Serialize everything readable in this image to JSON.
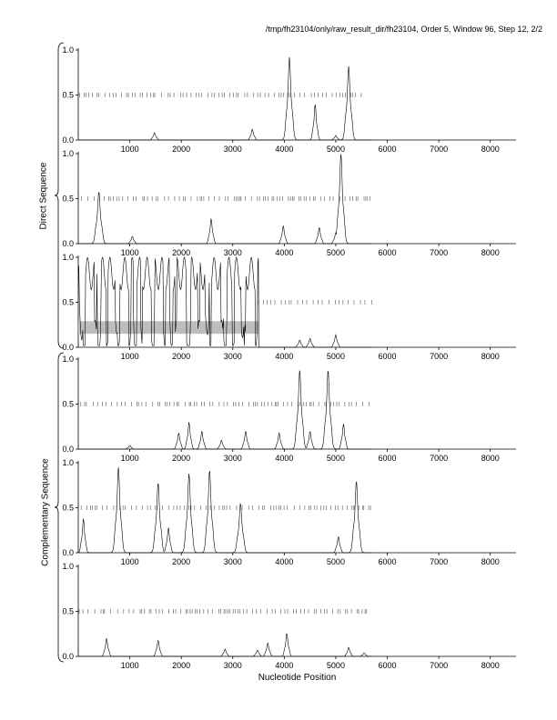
{
  "header": {
    "title": "/tmp/fh23104/only/raw_result_dir/fh23104, Order 5, Window 96, Step 12, 2/2"
  },
  "group_labels": {
    "direct": "Direct Sequence",
    "complementary": "Complementary Sequence"
  },
  "chart_data": {
    "type": "line",
    "xlabel": "Nucleotide Position",
    "xlim": [
      0,
      8500
    ],
    "ylim": [
      0,
      1
    ],
    "x_ticks": [
      1000,
      2000,
      3000,
      4000,
      5000,
      6000,
      7000,
      8000
    ],
    "y_ticks": [
      0.0,
      0.5,
      1.0
    ],
    "y_tick_labels": [
      "0.0",
      "0.5",
      "1.0"
    ],
    "sequence_end": 3500,
    "panels": [
      {
        "group": "Direct Sequence",
        "frame": 1,
        "peaks": [
          [
            1480,
            0.08
          ],
          [
            3380,
            0.12
          ],
          [
            4100,
            0.92
          ],
          [
            4600,
            0.4
          ],
          [
            5250,
            0.82
          ],
          [
            5000,
            0.05
          ]
        ],
        "marker_range": [
          0,
          5600
        ]
      },
      {
        "group": "Direct Sequence",
        "frame": 2,
        "peaks": [
          [
            400,
            0.58
          ],
          [
            1050,
            0.08
          ],
          [
            2580,
            0.28
          ],
          [
            3980,
            0.2
          ],
          [
            4680,
            0.18
          ],
          [
            5100,
            1.0
          ],
          [
            5000,
            0.12
          ]
        ],
        "marker_range": [
          0,
          5700
        ]
      },
      {
        "group": "Direct Sequence",
        "frame": 3,
        "dense_region": [
          0,
          3500
        ],
        "shaded_band": [
          0.15,
          0.29
        ],
        "peaks": [
          [
            4300,
            0.08
          ],
          [
            4500,
            0.1
          ],
          [
            5000,
            0.14
          ]
        ],
        "marker_range": [
          3500,
          5700
        ]
      },
      {
        "group": "Complementary Sequence",
        "frame": 1,
        "peaks": [
          [
            1000,
            0.04
          ],
          [
            1950,
            0.18
          ],
          [
            2150,
            0.3
          ],
          [
            2400,
            0.2
          ],
          [
            2780,
            0.1
          ],
          [
            3250,
            0.2
          ],
          [
            3900,
            0.18
          ],
          [
            4300,
            0.88
          ],
          [
            4500,
            0.2
          ],
          [
            4850,
            0.88
          ],
          [
            5150,
            0.28
          ]
        ],
        "marker_range": [
          0,
          5700
        ]
      },
      {
        "group": "Complementary Sequence",
        "frame": 2,
        "peaks": [
          [
            100,
            0.38
          ],
          [
            780,
            0.95
          ],
          [
            1550,
            0.78
          ],
          [
            1750,
            0.28
          ],
          [
            2150,
            0.88
          ],
          [
            2550,
            0.92
          ],
          [
            3150,
            0.55
          ],
          [
            5050,
            0.18
          ],
          [
            5400,
            0.8
          ]
        ],
        "marker_range": [
          0,
          5700
        ]
      },
      {
        "group": "Complementary Sequence",
        "frame": 3,
        "peaks": [
          [
            550,
            0.2
          ],
          [
            1550,
            0.18
          ],
          [
            2850,
            0.08
          ],
          [
            3480,
            0.07
          ],
          [
            3680,
            0.15
          ],
          [
            4050,
            0.26
          ],
          [
            5250,
            0.1
          ],
          [
            5550,
            0.04
          ]
        ],
        "marker_range": [
          0,
          5600
        ]
      }
    ]
  }
}
